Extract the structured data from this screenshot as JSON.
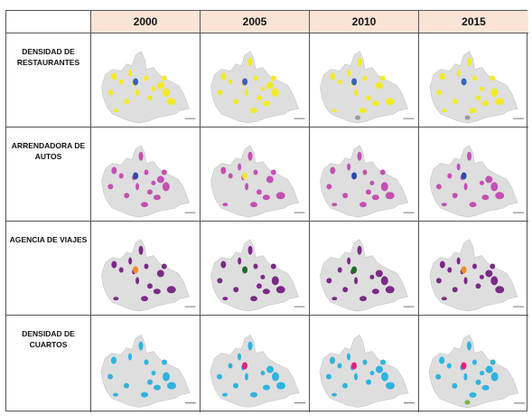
{
  "columns": [
    "2000",
    "2005",
    "2010",
    "2015"
  ],
  "rows": [
    {
      "label": "DENSIDAD DE\nRESTAURANTES",
      "base_color": "#f2e92c",
      "maps": [
        {
          "accents": [
            "#3a64b8"
          ]
        },
        {
          "accents": [
            "#3a64b8"
          ]
        },
        {
          "accents": [
            "#3a64b8",
            "#9a9a9a"
          ]
        },
        {
          "accents": [
            "#3a64b8",
            "#9a9a9a"
          ]
        }
      ]
    },
    {
      "label": "ARRENDADORA DE\nAUTOS",
      "base_color": "#c44fb3",
      "maps": [
        {
          "accents": [
            "#2e4aa8"
          ]
        },
        {
          "accents": [
            "#f2e92c"
          ]
        },
        {
          "accents": [
            "#2e4aa8"
          ]
        },
        {
          "accents": [
            "#2e4aa8"
          ]
        }
      ]
    },
    {
      "label": "AGENCIA DE VIAJES",
      "base_color": "#7a2a86",
      "maps": [
        {
          "accents": [
            "#ee8a2a"
          ]
        },
        {
          "accents": [
            "#1f6b2a"
          ]
        },
        {
          "accents": [
            "#1f6b2a"
          ]
        },
        {
          "accents": [
            "#ee8a2a"
          ]
        }
      ]
    },
    {
      "label": "DENSIDAD DE\nCUARTOS",
      "base_color": "#2fb3e0",
      "maps": [
        {
          "accents": []
        },
        {
          "accents": [
            "#e0237f"
          ]
        },
        {
          "accents": [
            "#e0237f"
          ]
        },
        {
          "accents": [
            "#e0237f",
            "#7ab648"
          ]
        }
      ]
    }
  ]
}
